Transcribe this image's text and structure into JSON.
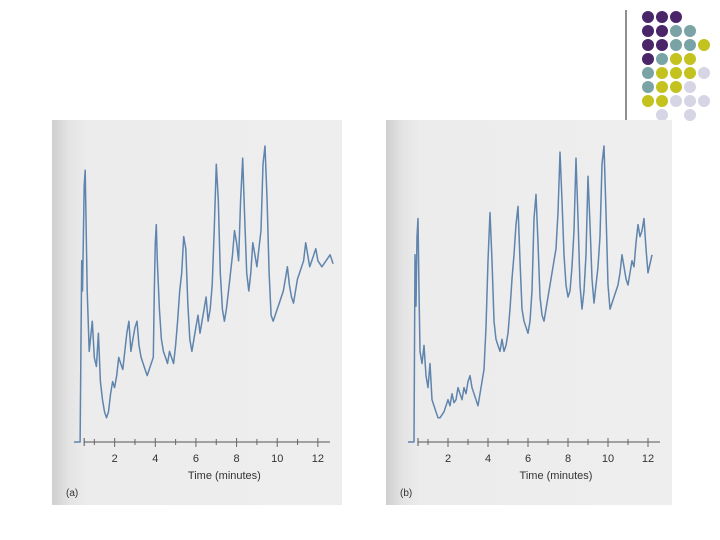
{
  "decoration": {
    "colors": {
      "purple": "#4a2568",
      "teal": "#7aa3a6",
      "olive": "#c3c21e",
      "lavender": "#d6d5e6",
      "divider": "#444444"
    },
    "dot_grid": [
      [
        "purple",
        "purple",
        "purple",
        "",
        ""
      ],
      [
        "purple",
        "purple",
        "teal",
        "teal",
        ""
      ],
      [
        "purple",
        "purple",
        "teal",
        "teal",
        "olive"
      ],
      [
        "purple",
        "teal",
        "olive",
        "olive",
        ""
      ],
      [
        "teal",
        "olive",
        "olive",
        "olive",
        "lavender"
      ],
      [
        "teal",
        "olive",
        "olive",
        "lavender",
        ""
      ],
      [
        "olive",
        "olive",
        "lavender",
        "lavender",
        "lavender"
      ],
      [
        "",
        "lavender",
        "",
        "lavender",
        ""
      ]
    ]
  },
  "chart_data": [
    {
      "type": "line",
      "panel_label": "(a)",
      "xlabel": "Time (minutes)",
      "ylabel": "",
      "title": "",
      "xlim": [
        0,
        12.4
      ],
      "ylim": [
        0,
        100
      ],
      "xticks": [
        2,
        4,
        6,
        8,
        10,
        12
      ],
      "line_color": "#5f84ad",
      "x": [
        0,
        0.2,
        0.3,
        0.38,
        0.42,
        0.5,
        0.55,
        0.65,
        0.75,
        0.9,
        1.0,
        1.1,
        1.2,
        1.3,
        1.4,
        1.5,
        1.6,
        1.7,
        1.8,
        1.9,
        2.0,
        2.1,
        2.2,
        2.3,
        2.4,
        2.5,
        2.6,
        2.7,
        2.8,
        2.9,
        3.0,
        3.1,
        3.2,
        3.3,
        3.4,
        3.5,
        3.6,
        3.7,
        3.8,
        3.9,
        3.95,
        4.0,
        4.05,
        4.1,
        4.2,
        4.3,
        4.4,
        4.5,
        4.6,
        4.7,
        4.8,
        4.9,
        5.0,
        5.1,
        5.2,
        5.3,
        5.4,
        5.5,
        5.6,
        5.7,
        5.8,
        5.9,
        6.0,
        6.1,
        6.2,
        6.3,
        6.4,
        6.5,
        6.6,
        6.7,
        6.8,
        6.9,
        7.0,
        7.1,
        7.2,
        7.3,
        7.4,
        7.5,
        7.6,
        7.7,
        7.8,
        7.9,
        8.0,
        8.1,
        8.2,
        8.3,
        8.4,
        8.5,
        8.6,
        8.7,
        8.8,
        8.9,
        9.0,
        9.1,
        9.2,
        9.3,
        9.4,
        9.5,
        9.6,
        9.7,
        9.8,
        9.9,
        10.0,
        10.1,
        10.2,
        10.3,
        10.4,
        10.5,
        10.6,
        10.7,
        10.8,
        10.9,
        11.0,
        11.1,
        11.2,
        11.3,
        11.4,
        11.5,
        11.6,
        11.7,
        11.8,
        11.9,
        12.0,
        12.2,
        12.4,
        12.6,
        12.75
      ],
      "y": [
        0,
        0,
        0,
        60,
        50,
        85,
        90,
        50,
        30,
        40,
        28,
        25,
        36,
        20,
        14,
        10,
        8,
        10,
        16,
        20,
        18,
        22,
        28,
        26,
        24,
        30,
        36,
        40,
        30,
        34,
        38,
        40,
        32,
        28,
        26,
        24,
        22,
        24,
        26,
        28,
        50,
        66,
        72,
        60,
        44,
        34,
        30,
        28,
        26,
        30,
        28,
        26,
        32,
        40,
        50,
        56,
        68,
        64,
        46,
        34,
        30,
        34,
        38,
        42,
        36,
        40,
        44,
        48,
        40,
        44,
        52,
        70,
        92,
        80,
        56,
        44,
        40,
        44,
        50,
        56,
        62,
        70,
        66,
        60,
        80,
        94,
        74,
        56,
        50,
        56,
        66,
        62,
        58,
        64,
        70,
        92,
        98,
        80,
        56,
        42,
        40,
        42,
        44,
        46,
        48,
        50,
        54,
        58,
        52,
        48,
        46,
        50,
        54,
        56,
        58,
        60,
        66,
        62,
        58,
        60,
        62,
        64,
        60,
        58,
        60,
        62,
        59
      ]
    },
    {
      "type": "line",
      "panel_label": "(b)",
      "xlabel": "Time (minutes)",
      "ylabel": "",
      "title": "",
      "xlim": [
        0,
        12.4
      ],
      "ylim": [
        0,
        100
      ],
      "xticks": [
        2,
        4,
        6,
        8,
        10,
        12
      ],
      "line_color": "#5f84ad",
      "x": [
        0,
        0.2,
        0.3,
        0.35,
        0.4,
        0.45,
        0.5,
        0.55,
        0.6,
        0.7,
        0.8,
        0.9,
        1.0,
        1.1,
        1.2,
        1.3,
        1.4,
        1.5,
        1.6,
        1.7,
        1.8,
        1.9,
        2.0,
        2.1,
        2.2,
        2.3,
        2.4,
        2.5,
        2.6,
        2.7,
        2.8,
        2.9,
        3.0,
        3.1,
        3.2,
        3.3,
        3.4,
        3.5,
        3.6,
        3.7,
        3.8,
        3.9,
        4.0,
        4.1,
        4.2,
        4.3,
        4.4,
        4.5,
        4.6,
        4.7,
        4.8,
        4.9,
        5.0,
        5.1,
        5.2,
        5.3,
        5.4,
        5.5,
        5.6,
        5.7,
        5.8,
        5.9,
        6.0,
        6.1,
        6.2,
        6.3,
        6.4,
        6.5,
        6.6,
        6.7,
        6.8,
        6.9,
        7.0,
        7.1,
        7.2,
        7.3,
        7.4,
        7.5,
        7.6,
        7.7,
        7.8,
        7.9,
        8.0,
        8.1,
        8.2,
        8.3,
        8.4,
        8.5,
        8.6,
        8.7,
        8.8,
        8.9,
        9.0,
        9.1,
        9.2,
        9.3,
        9.4,
        9.5,
        9.6,
        9.7,
        9.8,
        9.9,
        10.0,
        10.1,
        10.2,
        10.3,
        10.4,
        10.5,
        10.6,
        10.7,
        10.8,
        10.9,
        11.0,
        11.1,
        11.2,
        11.3,
        11.4,
        11.5,
        11.6,
        11.7,
        11.8,
        11.9,
        12.0,
        12.2
      ],
      "y": [
        0,
        0,
        0,
        62,
        45,
        68,
        74,
        50,
        30,
        26,
        32,
        22,
        18,
        26,
        14,
        12,
        10,
        8,
        8,
        9,
        10,
        12,
        14,
        12,
        16,
        13,
        14,
        18,
        16,
        14,
        18,
        16,
        20,
        22,
        18,
        16,
        14,
        12,
        16,
        20,
        24,
        38,
        60,
        76,
        60,
        40,
        34,
        32,
        30,
        34,
        30,
        32,
        36,
        44,
        54,
        62,
        72,
        78,
        60,
        44,
        40,
        38,
        36,
        40,
        50,
        74,
        82,
        66,
        48,
        42,
        40,
        44,
        48,
        52,
        56,
        60,
        64,
        76,
        96,
        80,
        62,
        52,
        48,
        50,
        58,
        70,
        94,
        74,
        52,
        44,
        50,
        62,
        88,
        72,
        54,
        46,
        52,
        58,
        68,
        92,
        98,
        76,
        52,
        44,
        46,
        48,
        50,
        52,
        56,
        62,
        58,
        54,
        52,
        56,
        60,
        58,
        66,
        72,
        68,
        70,
        74,
        64,
        56,
        62
      ]
    }
  ]
}
